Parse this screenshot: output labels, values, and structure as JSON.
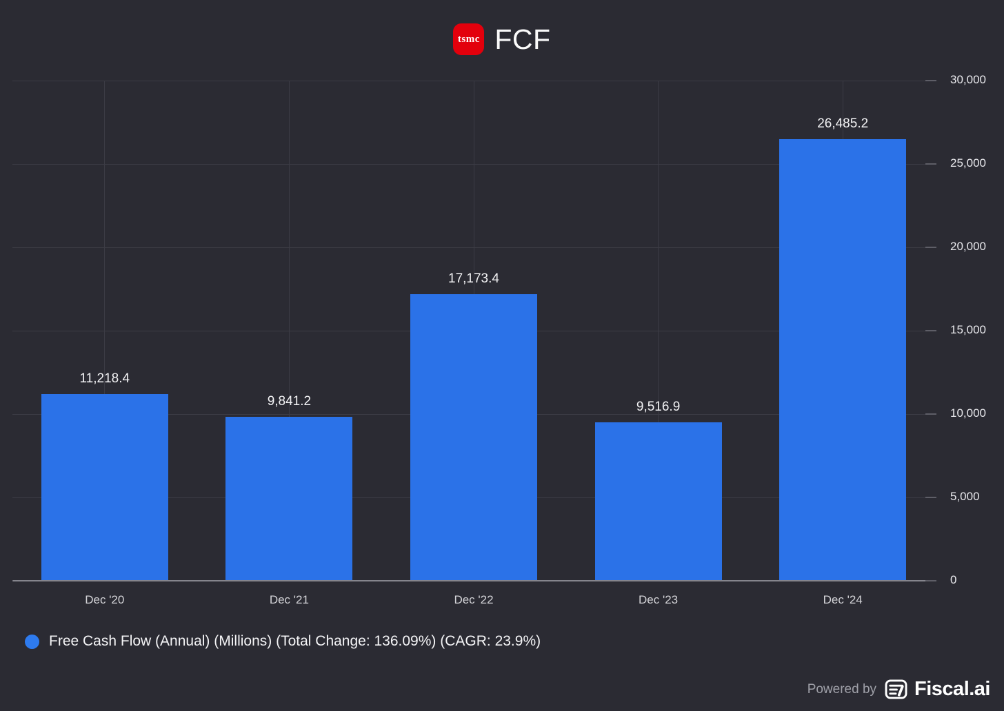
{
  "header": {
    "logo_text": "tsmc",
    "title": "FCF"
  },
  "chart_data": {
    "type": "bar",
    "title": "FCF",
    "categories": [
      "Dec '20",
      "Dec '21",
      "Dec '22",
      "Dec '23",
      "Dec '24"
    ],
    "series": [
      {
        "name": "Free Cash Flow (Annual) (Millions)",
        "values": [
          11218.4,
          9841.2,
          17173.4,
          9516.9,
          26485.2
        ],
        "value_labels": [
          "11,218.4",
          "9,841.2",
          "17,173.4",
          "9,516.9",
          "26,485.2"
        ]
      }
    ],
    "ylim": [
      0,
      30000
    ],
    "yticks": [
      {
        "value": 0,
        "label": "0"
      },
      {
        "value": 5000,
        "label": "5,000"
      },
      {
        "value": 10000,
        "label": "10,000"
      },
      {
        "value": 15000,
        "label": "15,000"
      },
      {
        "value": 20000,
        "label": "20,000"
      },
      {
        "value": 25000,
        "label": "25,000"
      },
      {
        "value": 30000,
        "label": "30,000"
      }
    ],
    "grid": true,
    "legend_position": "bottom-left",
    "bar_color": "#2b72e8"
  },
  "legend": {
    "label": "Free Cash Flow (Annual) (Millions) (Total Change: 136.09%) (CAGR: 23.9%)",
    "dot_color": "#2e7bef"
  },
  "footer": {
    "powered_by": "Powered by",
    "brand": "Fiscal.ai"
  },
  "colors": {
    "background": "#2b2b33",
    "bar": "#2b72e8",
    "legend_dot": "#2e7bef",
    "logo_red": "#e3000c",
    "gridline": "#3c3c45",
    "zero_line": "#85858d",
    "text_primary": "#fafafa",
    "text_axis": "#d4d4d8",
    "text_muted": "#9fa0a8"
  }
}
